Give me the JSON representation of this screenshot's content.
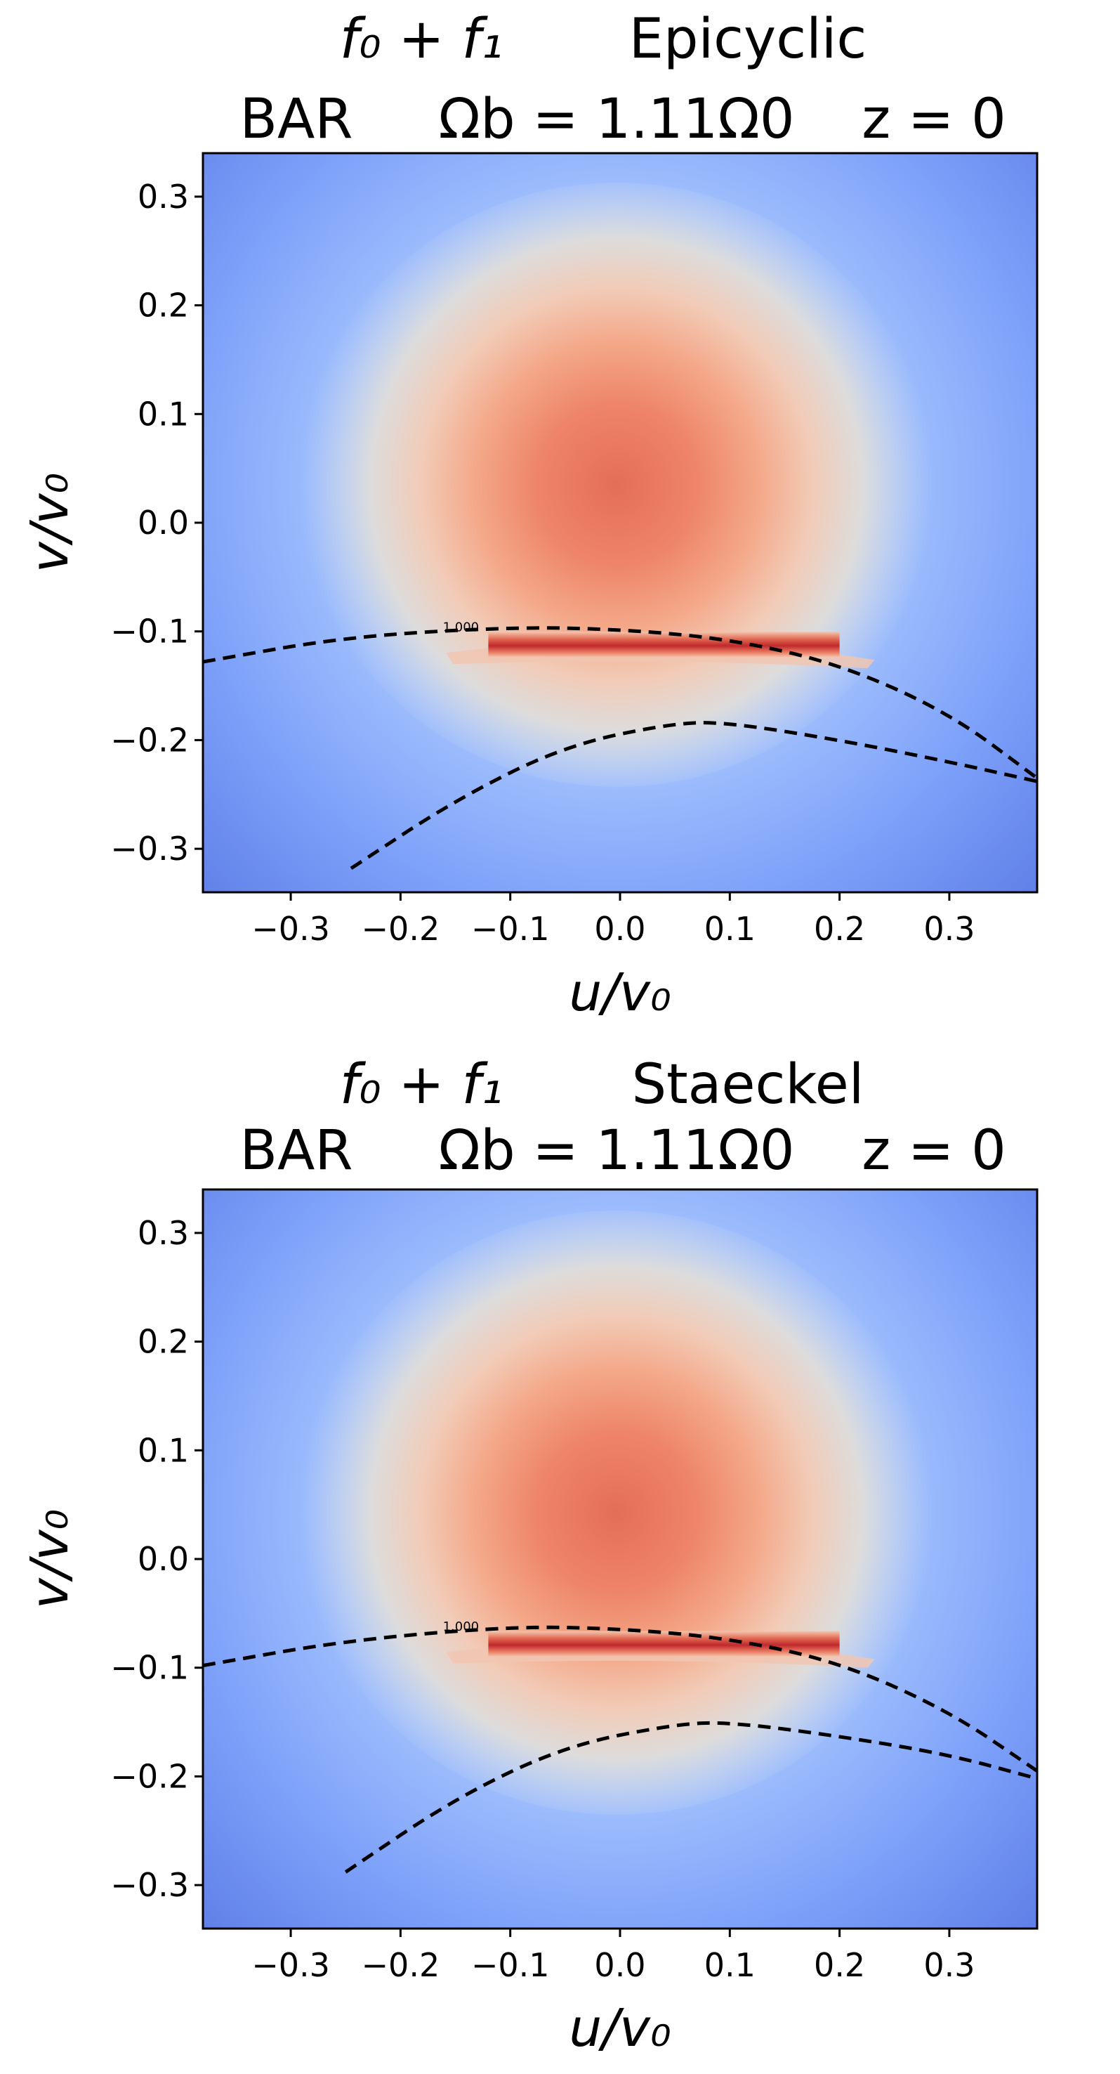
{
  "chart_data": [
    {
      "type": "heatmap",
      "title_line1_left": "f₀ + f₁",
      "title_line1_right": "Epicyclic",
      "title_line2": [
        "BAR",
        "Ω_b = 1.11Ω₀",
        "z = 0"
      ],
      "title_line2_parts": {
        "bar": "BAR",
        "omega_b": "Ωb = 1.11Ω0",
        "z": "z = 0"
      },
      "xlabel": "u/v₀",
      "ylabel": "v/v₀",
      "xlim": [
        -0.38,
        0.38
      ],
      "ylim": [
        -0.34,
        0.34
      ],
      "xticks": [
        -0.3,
        -0.2,
        -0.1,
        0.0,
        0.1,
        0.2,
        0.3
      ],
      "xtick_labels": [
        "−0.3",
        "−0.2",
        "−0.1",
        "0.0",
        "0.1",
        "0.2",
        "0.3"
      ],
      "yticks": [
        0.3,
        0.2,
        0.1,
        0.0,
        -0.1,
        -0.2,
        -0.3
      ],
      "ytick_labels": [
        "0.3",
        "0.2",
        "0.1",
        "0.0",
        "−0.1",
        "−0.2",
        "−0.3"
      ],
      "colormap": "coolwarm",
      "blob_center": [
        0.0,
        0.03
      ],
      "resonance_band": {
        "u_range": [
          -0.12,
          0.2
        ],
        "v": -0.112
      },
      "contour_label": "1.000",
      "dashed_curves": [
        {
          "name": "upper",
          "points": [
            [
              -0.38,
              -0.128
            ],
            [
              -0.25,
              -0.105
            ],
            [
              -0.1,
              -0.096
            ],
            [
              0.0,
              -0.098
            ],
            [
              0.1,
              -0.107
            ],
            [
              0.2,
              -0.13
            ],
            [
              0.3,
              -0.175
            ],
            [
              0.38,
              -0.235
            ]
          ]
        },
        {
          "name": "lower",
          "points": [
            [
              -0.245,
              -0.318
            ],
            [
              -0.15,
              -0.255
            ],
            [
              -0.05,
              -0.205
            ],
            [
              0.05,
              -0.184
            ],
            [
              0.1,
              -0.184
            ],
            [
              0.2,
              -0.2
            ],
            [
              0.3,
              -0.22
            ],
            [
              0.38,
              -0.238
            ]
          ]
        }
      ]
    },
    {
      "type": "heatmap",
      "title_line1_left": "f₀ + f₁",
      "title_line1_right": "Staeckel",
      "title_line2_parts": {
        "bar": "BAR",
        "omega_b": "Ωb = 1.11Ω0",
        "z": "z = 0"
      },
      "xlabel": "u/v₀",
      "ylabel": "v/v₀",
      "xlim": [
        -0.38,
        0.38
      ],
      "ylim": [
        -0.34,
        0.34
      ],
      "xticks": [
        -0.3,
        -0.2,
        -0.1,
        0.0,
        0.1,
        0.2,
        0.3
      ],
      "xtick_labels": [
        "−0.3",
        "−0.2",
        "−0.1",
        "0.0",
        "0.1",
        "0.2",
        "0.3"
      ],
      "yticks": [
        0.3,
        0.2,
        0.1,
        0.0,
        -0.1,
        -0.2,
        -0.3
      ],
      "ytick_labels": [
        "0.3",
        "0.2",
        "0.1",
        "0.0",
        "−0.1",
        "−0.2",
        "−0.3"
      ],
      "colormap": "coolwarm",
      "blob_center": [
        0.0,
        0.04
      ],
      "resonance_band": {
        "u_range": [
          -0.12,
          0.2
        ],
        "v": -0.078
      },
      "contour_label": "1.000",
      "dashed_curves": [
        {
          "name": "upper",
          "points": [
            [
              -0.38,
              -0.098
            ],
            [
              -0.25,
              -0.075
            ],
            [
              -0.1,
              -0.062
            ],
            [
              0.0,
              -0.064
            ],
            [
              0.1,
              -0.073
            ],
            [
              0.2,
              -0.095
            ],
            [
              0.3,
              -0.14
            ],
            [
              0.38,
              -0.195
            ]
          ]
        },
        {
          "name": "lower",
          "points": [
            [
              -0.25,
              -0.288
            ],
            [
              -0.15,
              -0.22
            ],
            [
              -0.05,
              -0.172
            ],
            [
              0.05,
              -0.152
            ],
            [
              0.1,
              -0.15
            ],
            [
              0.2,
              -0.163
            ],
            [
              0.3,
              -0.18
            ],
            [
              0.38,
              -0.202
            ]
          ]
        }
      ]
    }
  ]
}
